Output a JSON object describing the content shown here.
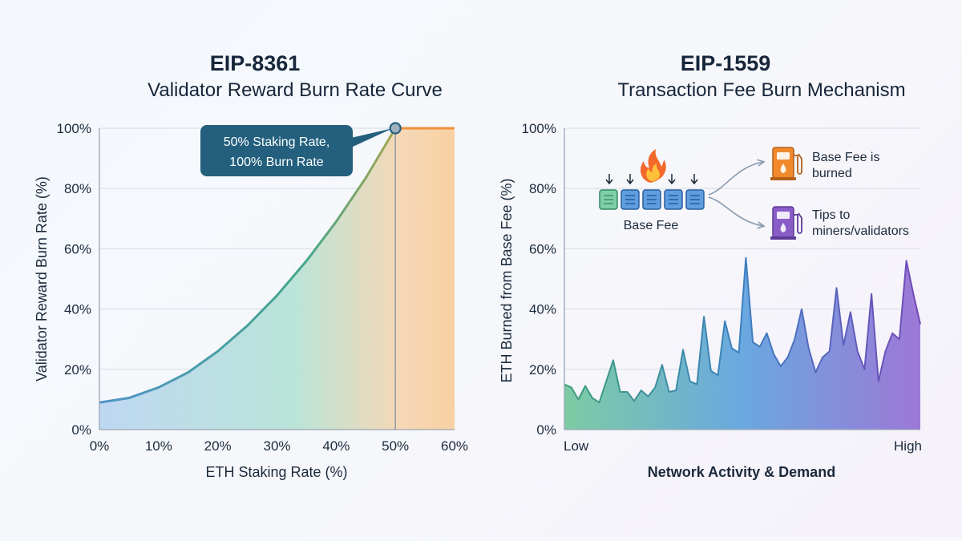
{
  "colors": {
    "curve_start": "#4f93c8",
    "curve_end": "#9aa85a",
    "plateau": "#f0913a",
    "callout": "#24607e",
    "fee_start": "#56b98c",
    "fee_mid": "#5096d6",
    "fee_end": "#8a5bc9",
    "flame": "#f2682a",
    "pump_orange": "#f08a2c",
    "pump_purple": "#8a5cc8"
  },
  "icons": [
    "fire-icon",
    "fuel-pump-icon",
    "fuel-pump-icon",
    "down-arrow-icon",
    "transaction-block-icon"
  ],
  "chart_data": [
    {
      "type": "area",
      "title": "EIP-8361",
      "subtitle": "Validator Reward Burn Rate Curve",
      "xlabel": "ETH Staking Rate (%)",
      "ylabel": "Validator Reward Burn Rate (%)",
      "x_ticks": [
        "0%",
        "10%",
        "20%",
        "30%",
        "40%",
        "50%",
        "60%"
      ],
      "y_ticks": [
        "0%",
        "20%",
        "40%",
        "60%",
        "80%",
        "100%"
      ],
      "xlim": [
        0,
        60
      ],
      "ylim": [
        0,
        100
      ],
      "grid": true,
      "series": [
        {
          "x": [
            0,
            5,
            10,
            15,
            20,
            25,
            30,
            35,
            40,
            45,
            50,
            55,
            60
          ],
          "values": [
            9,
            10.5,
            14,
            19,
            26,
            34.5,
            44.5,
            56,
            69,
            83.5,
            100,
            100,
            100
          ]
        }
      ],
      "annotation": {
        "text_line1": "50% Staking Rate,",
        "text_line2": "100% Burn Rate",
        "x": 50,
        "y": 100
      }
    },
    {
      "type": "area",
      "title": "EIP-1559",
      "subtitle": "Transaction Fee Burn Mechanism",
      "xlabel": "Network Activity & Demand",
      "ylabel": "ETH Burned from Base Fee (%)",
      "x_ticks": [
        "Low",
        "High"
      ],
      "y_ticks": [
        "0%",
        "20%",
        "40%",
        "60%",
        "80%",
        "100%"
      ],
      "ylim": [
        0,
        100
      ],
      "grid": true,
      "series": [
        {
          "values": [
            15,
            14,
            10,
            14.5,
            10.5,
            9,
            16,
            23,
            12.5,
            12.5,
            9.5,
            13,
            11,
            14,
            21.5,
            12.5,
            13,
            26.5,
            16,
            15,
            37.5,
            19.5,
            18,
            36,
            27,
            25.5,
            57,
            29,
            27.5,
            32,
            25,
            21,
            24,
            30,
            40,
            27,
            19,
            24,
            26,
            47,
            28,
            39,
            26,
            20,
            45,
            16,
            26,
            32,
            30,
            56,
            45,
            35
          ]
        }
      ],
      "diagram": {
        "block_label": "Base Fee",
        "burn_label_line1": "Base Fee is",
        "burn_label_line2": "burned",
        "tip_label_line1": "Tips to",
        "tip_label_line2": "miners/validators"
      }
    }
  ]
}
